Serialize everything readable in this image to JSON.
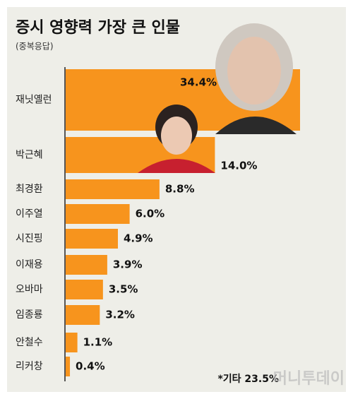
{
  "chart_data": {
    "type": "bar",
    "orientation": "horizontal",
    "title": "증시 영향력 가장 큰 인물",
    "subtitle": "(중복응답)",
    "categories": [
      "재닛옐런",
      "박근혜",
      "최경환",
      "이주열",
      "시진핑",
      "이재용",
      "오바마",
      "임종룡",
      "안철수",
      "리커창"
    ],
    "values": [
      34.4,
      14.0,
      8.8,
      6.0,
      4.9,
      3.9,
      3.5,
      3.2,
      1.1,
      0.4
    ],
    "value_labels": [
      "34.4%",
      "14.0%",
      "8.8%",
      "6.0%",
      "4.9%",
      "3.9%",
      "3.5%",
      "3.2%",
      "1.1%",
      "0.4%"
    ],
    "color": "#f7941d",
    "annotation": "*기타 23.5%",
    "watermark": "머니투데이"
  }
}
